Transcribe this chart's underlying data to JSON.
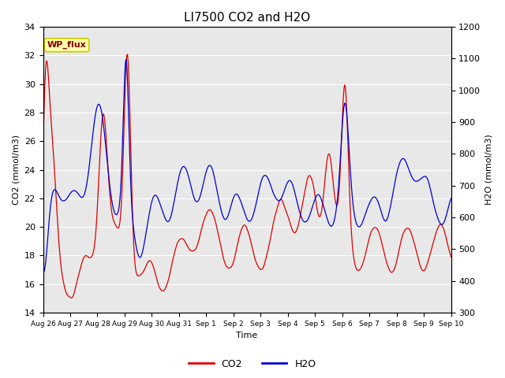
{
  "title": "LI7500 CO2 and H2O",
  "xlabel": "Time",
  "ylabel_left": "CO2 (mmol/m3)",
  "ylabel_right": "H2O (mmol/m3)",
  "ylim_left": [
    14,
    34
  ],
  "ylim_right": [
    300,
    1200
  ],
  "yticks_left": [
    14,
    16,
    18,
    20,
    22,
    24,
    26,
    28,
    30,
    32,
    34
  ],
  "yticks_right": [
    300,
    400,
    500,
    600,
    700,
    800,
    900,
    1000,
    1100,
    1200
  ],
  "xtick_labels": [
    "Aug 26",
    "Aug 27",
    "Aug 28",
    "Aug 29",
    "Aug 30",
    "Aug 31",
    "Sep 1",
    "Sep 2",
    "Sep 3",
    "Sep 4",
    "Sep 5",
    "Sep 6",
    "Sep 7",
    "Sep 8",
    "Sep 9",
    "Sep 10"
  ],
  "legend_labels": [
    "CO2",
    "H2O"
  ],
  "co2_color": "#dd0000",
  "h2o_color": "#0000cc",
  "fig_bg_color": "#ffffff",
  "plot_bg_color": "#e8e8e8",
  "grid_color": "#ffffff",
  "annotation_text": "WP_flux",
  "annotation_color": "#800000",
  "annotation_bg": "#ffffaa",
  "annotation_edge": "#cccc00",
  "n_points": 600
}
